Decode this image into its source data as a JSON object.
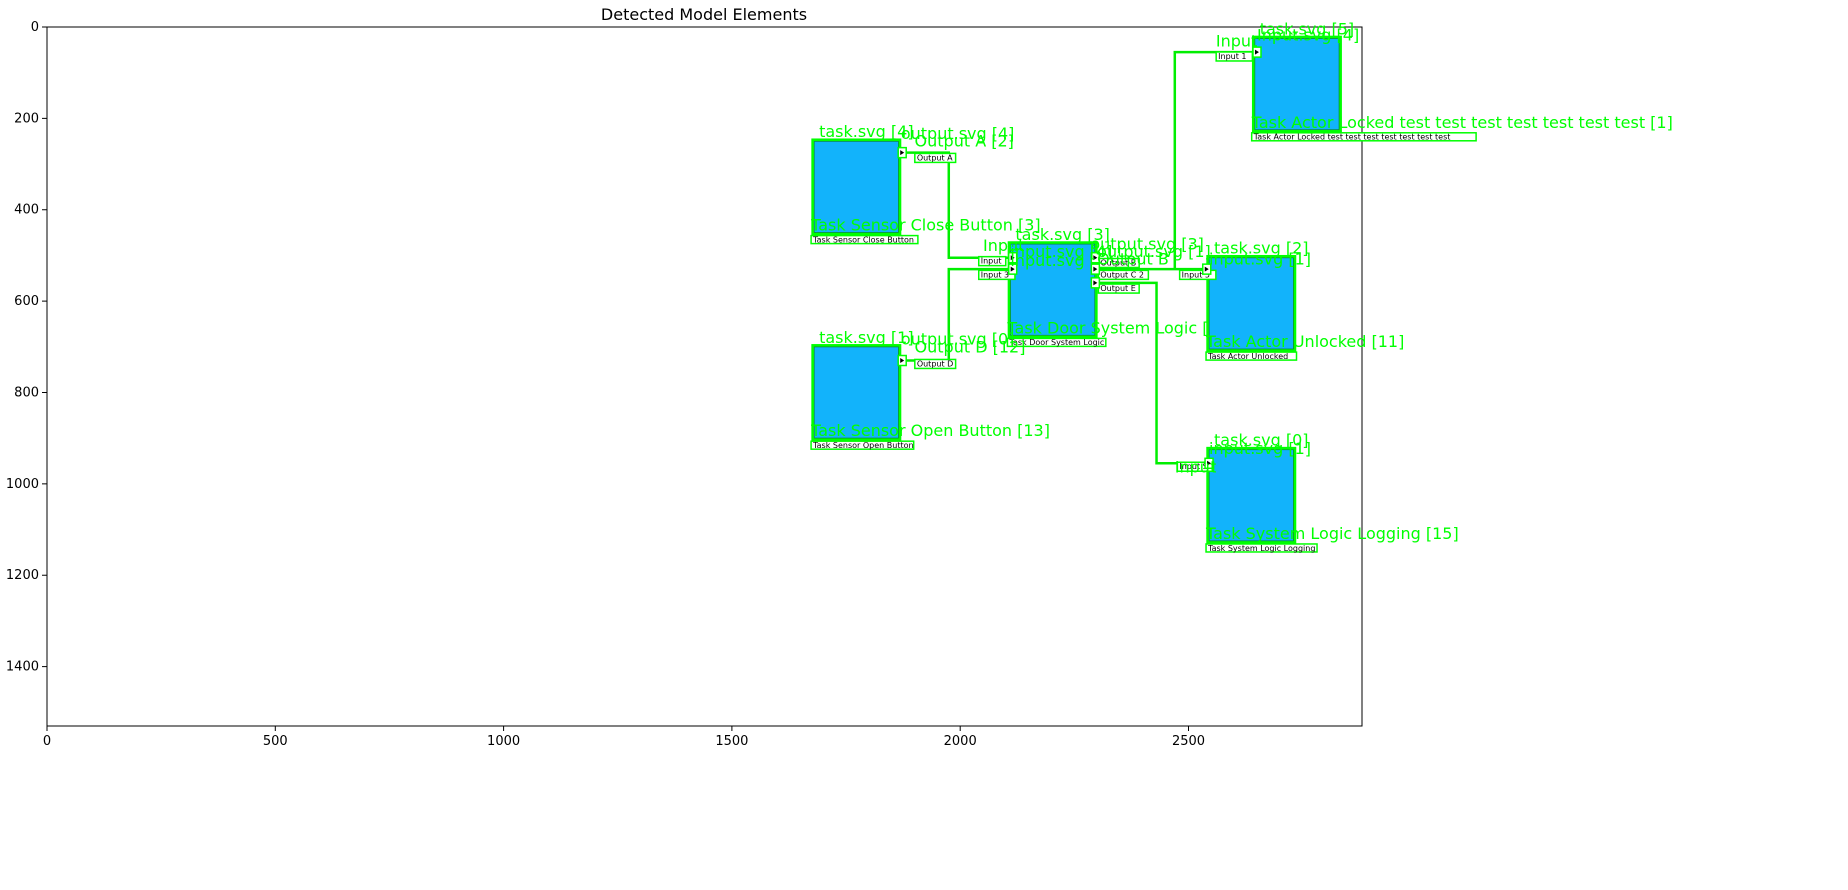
{
  "title": "Detected Model Elements",
  "axes": {
    "xlim": [
      0,
      2880
    ],
    "ylim": [
      1530,
      0
    ],
    "xticks": [
      "0",
      "500",
      "1000",
      "1500",
      "2000",
      "2500"
    ],
    "yticks": [
      "0",
      "200",
      "400",
      "600",
      "800",
      "1000",
      "1200",
      "1400"
    ],
    "grid": false
  },
  "colors": {
    "task": "#12b3fb",
    "detection": "#00ff00",
    "connector": "#00ee00"
  },
  "tasks": [
    {
      "name": "task-sensor-close-button",
      "label": "Task Sensor Close Button",
      "det_label": "Task Sensor Close Button [3]",
      "svg_label": "task.svg [4]",
      "x": [
        1680,
        1865
      ],
      "y": [
        250,
        450
      ]
    },
    {
      "name": "task-sensor-open-button",
      "label": "Task Sensor Open Button",
      "det_label": "Task Sensor Open Button [13]",
      "svg_label": "task.svg [1]",
      "x": [
        1680,
        1865
      ],
      "y": [
        700,
        900
      ]
    },
    {
      "name": "task-door-system-logic",
      "label": "Task Door System Logic",
      "det_label": "Task Door System Logic [10]",
      "svg_label": "task.svg [3]",
      "x": [
        2110,
        2295
      ],
      "y": [
        475,
        675
      ]
    },
    {
      "name": "task-actor-unlocked",
      "label": "Task Actor Unlocked",
      "det_label": "Task Actor Unlocked [11]",
      "svg_label": "task.svg [2]",
      "x": [
        2545,
        2730
      ],
      "y": [
        505,
        705
      ]
    },
    {
      "name": "task-system-logic-logging",
      "label": "Task System Logic Logging",
      "det_label": "Task System Logic Logging [15]",
      "svg_label": "task.svg [0]",
      "x": [
        2545,
        2730
      ],
      "y": [
        925,
        1125
      ]
    },
    {
      "name": "task-actor-locked",
      "label": "Task Actor Locked test test test test test test test",
      "det_label": "Task Actor Locked test test test test test test test [1]",
      "svg_label": "task.svg [5]",
      "x": [
        2645,
        2830
      ],
      "y": [
        25,
        225
      ]
    }
  ],
  "small_labels": [
    {
      "text": "Output A",
      "x": 1905,
      "y": 292
    },
    {
      "text": "Output D",
      "x": 1905,
      "y": 743
    },
    {
      "text": "Input",
      "x": 2045,
      "y": 518
    },
    {
      "text": "Input 3",
      "x": 2045,
      "y": 548
    },
    {
      "text": "Output B",
      "x": 2307,
      "y": 522
    },
    {
      "text": "Output C 2",
      "x": 2307,
      "y": 548
    },
    {
      "text": "Output E",
      "x": 2307,
      "y": 578
    },
    {
      "text": "Input 5",
      "x": 2485,
      "y": 548
    },
    {
      "text": "Input 1",
      "x": 2565,
      "y": 70
    },
    {
      "text": "Input S",
      "x": 2480,
      "y": 968
    }
  ],
  "port_labels": [
    {
      "text": "output.svg [4]",
      "x": 1870,
      "y": 245
    },
    {
      "text": "Output A [2]",
      "x": 1900,
      "y": 262
    },
    {
      "text": "output.svg [0]",
      "x": 1870,
      "y": 695
    },
    {
      "text": "Output D [12]",
      "x": 1900,
      "y": 712
    },
    {
      "text": "Input",
      "x": 2050,
      "y": 490
    },
    {
      "text": "input.svg [4]",
      "x": 2110,
      "y": 503
    },
    {
      "text": "input.svg",
      "x": 2110,
      "y": 523
    },
    {
      "text": "output.svg [3]",
      "x": 2285,
      "y": 487
    },
    {
      "text": "output.svg [1]",
      "x": 2300,
      "y": 503
    },
    {
      "text": "Output B",
      "x": 2300,
      "y": 520
    },
    {
      "text": "Input",
      "x": 2470,
      "y": 975
    },
    {
      "text": "input.svg [1]",
      "x": 2545,
      "y": 935
    },
    {
      "text": "input.svg [1]",
      "x": 2545,
      "y": 520
    },
    {
      "text": "Input",
      "x": 2560,
      "y": 43
    },
    {
      "text": "Input.svg [4]",
      "x": 2650,
      "y": 30
    }
  ]
}
